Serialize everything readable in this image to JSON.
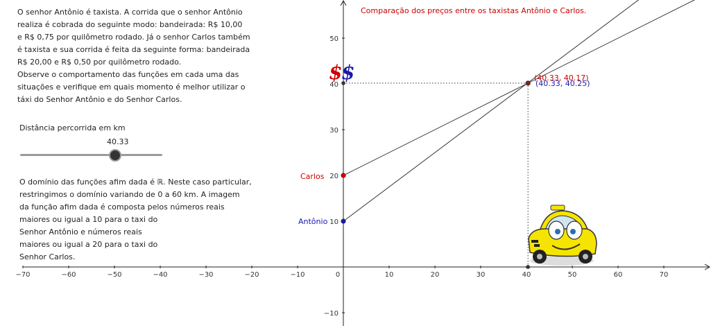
{
  "intro_text": [
    "O senhor Antônio é taxista. A corrida que o senhor Antônio",
    "realiza é cobrada do seguinte modo: bandeirada: R$ 10,00",
    "e R$ 0,75 por quilômetro rodado. Já o  senhor Carlos também",
    "é taxista e sua corrida é feita da seguinte forma: bandeirada",
    "R$ 20,00 e R$ 0,50 por quilômetro rodado.",
    "Observe o comportamento das funções em  cada uma das",
    "situações e verifique em quais momento é melhor utilizar o",
    "táxi do Senhor Antônio e do Senhor Carlos."
  ],
  "slider": {
    "label": "Distância percorrida em km",
    "value": "40.33",
    "min": 0,
    "max": 60,
    "current": 40.33
  },
  "domain_text": [
    "O domínio das funções afim dada é ℝ. Neste caso particular,",
    "restringimos o domínio variando de 0 a 60 km. A imagem",
    "da função afim dada é composta pelos números reais",
    "maiores ou igual a 10 para o taxi do",
    "Senhor Antônio e números reais",
    "maiores ou igual a 20 para o taxi do",
    "Senhor Carlos."
  ],
  "chart_title": "Comparação dos preços entre os taxistas Antônio e Carlos.",
  "labels": {
    "carlos": "Carlos",
    "antonio": "Antônio",
    "dollar": "$"
  },
  "points": {
    "carlos_text": "(40.33, 40.17)",
    "antonio_text": "(40.33, 40.25)"
  },
  "colors": {
    "carlos": "#cc0000",
    "antonio": "#1a1aaa",
    "taxi": "#f5e400"
  },
  "icons": {
    "taxi": "taxi-cartoon-icon"
  },
  "chart_data": {
    "type": "line",
    "title": "Comparação dos preços entre os taxistas Antônio e Carlos.",
    "xlabel": "",
    "ylabel": "",
    "xlim": [
      -70,
      78
    ],
    "ylim": [
      -12,
      58
    ],
    "x_ticks": [
      -70,
      -60,
      -50,
      -40,
      -30,
      -20,
      -10,
      0,
      10,
      20,
      30,
      40,
      50,
      60,
      70
    ],
    "y_ticks": [
      -10,
      10,
      20,
      30,
      40,
      50
    ],
    "grid": false,
    "series": [
      {
        "name": "Carlos",
        "intercept": 20,
        "slope": 0.5
      },
      {
        "name": "Antônio",
        "intercept": 10,
        "slope": 0.75
      }
    ],
    "marked_points": [
      {
        "name": "Carlos",
        "x": 0,
        "y": 20
      },
      {
        "name": "Antônio",
        "x": 0,
        "y": 10
      },
      {
        "x": 40.33,
        "y": 40.17
      },
      {
        "x": 40.33,
        "y": 0
      },
      {
        "x": 0,
        "y": 40.17
      }
    ]
  }
}
